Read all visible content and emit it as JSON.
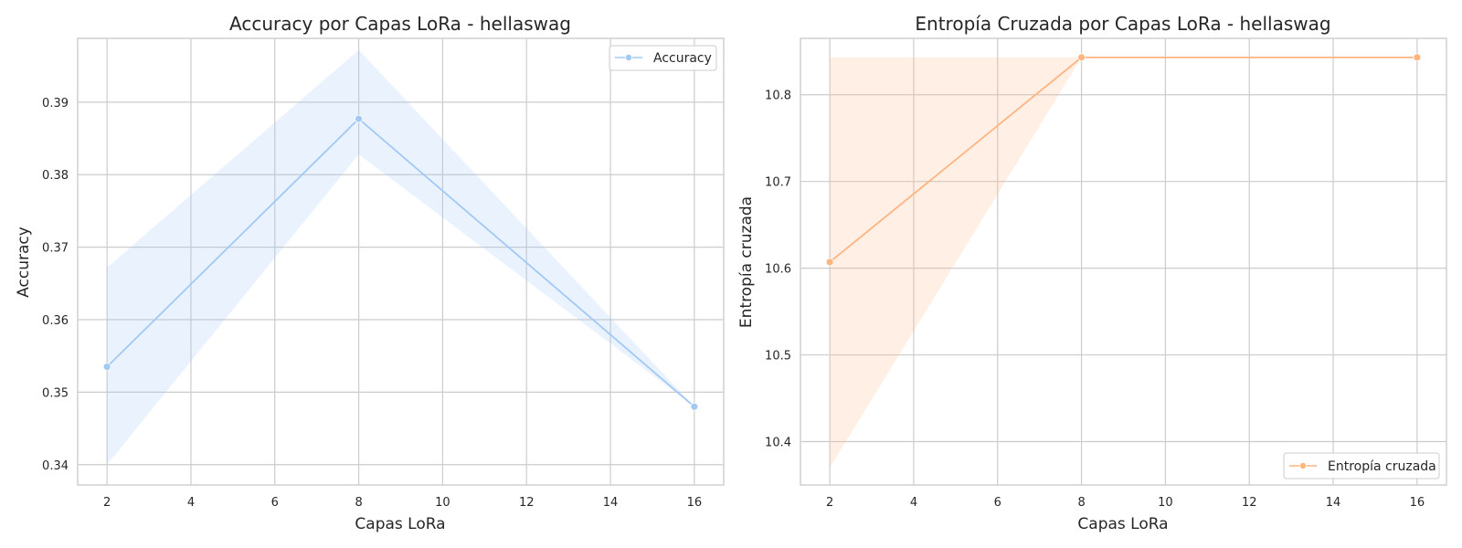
{
  "chart_data": [
    {
      "type": "line",
      "title": "Accuracy por Capas LoRa - hellaswag",
      "xlabel": "Capas LoRa",
      "ylabel": "Accuracy",
      "xlim": [
        1.3,
        16.7
      ],
      "ylim": [
        0.3372,
        0.3988
      ],
      "xticks": [
        2,
        4,
        6,
        8,
        10,
        12,
        14,
        16
      ],
      "xtick_labels": [
        "2",
        "4",
        "6",
        "8",
        "10",
        "12",
        "14",
        "16"
      ],
      "yticks": [
        0.34,
        0.35,
        0.36,
        0.37,
        0.38,
        0.39
      ],
      "ytick_labels": [
        "0.34",
        "0.35",
        "0.36",
        "0.37",
        "0.38",
        "0.39"
      ],
      "grid": true,
      "legend_position": "top-right",
      "series": [
        {
          "name": "Accuracy",
          "color": "#a1c9f4",
          "x": [
            2,
            8,
            16
          ],
          "y": [
            0.3535,
            0.3877,
            0.348
          ],
          "band_lower": [
            0.34,
            0.3828,
            0.348
          ],
          "band_upper": [
            0.3672,
            0.3972,
            0.348
          ]
        }
      ]
    },
    {
      "type": "line",
      "title": "Entropía Cruzada por Capas LoRa - hellaswag",
      "xlabel": "Capas LoRa",
      "ylabel": "Entropía cruzada",
      "xlim": [
        1.3,
        16.7
      ],
      "ylim": [
        10.35,
        10.865
      ],
      "xticks": [
        2,
        4,
        6,
        8,
        10,
        12,
        14,
        16
      ],
      "xtick_labels": [
        "2",
        "4",
        "6",
        "8",
        "10",
        "12",
        "14",
        "16"
      ],
      "yticks": [
        10.4,
        10.5,
        10.6,
        10.7,
        10.8
      ],
      "ytick_labels": [
        "10.4",
        "10.5",
        "10.6",
        "10.7",
        "10.8"
      ],
      "grid": true,
      "legend_position": "bottom-right",
      "series": [
        {
          "name": "Entropía cruzada",
          "color": "#ffb482",
          "x": [
            2,
            8,
            16
          ],
          "y": [
            10.607,
            10.843,
            10.843
          ],
          "band_lower": [
            10.37,
            10.843,
            10.843
          ],
          "band_upper": [
            10.843,
            10.843,
            10.843
          ]
        }
      ]
    }
  ]
}
